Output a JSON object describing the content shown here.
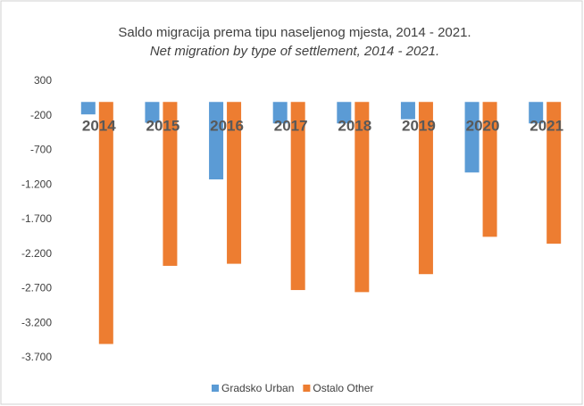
{
  "chart_data": {
    "type": "bar",
    "title": "Saldo migracija  prema tipu naseljenog mjesta, 2014 - 2021.",
    "subtitle": "Net migration by type of settlement, 2014 - 2021.",
    "categories": [
      "2014",
      "2015",
      "2016",
      "2017",
      "2018",
      "2019",
      "2020",
      "2021"
    ],
    "series": [
      {
        "name": "Gradsko Urban",
        "color": "#5b9bd5",
        "values": [
          -180,
          -300,
          -1120,
          -310,
          -310,
          -250,
          -1020,
          -310
        ]
      },
      {
        "name": "Ostalo Other",
        "color": "#ed7d31",
        "values": [
          -3500,
          -2370,
          -2340,
          -2720,
          -2750,
          -2490,
          -1950,
          -2050
        ]
      }
    ],
    "ylim": [
      300,
      -3700
    ],
    "yticks": [
      300,
      -200,
      -700,
      {
        "value": -1200,
        "label": "-1.200"
      },
      {
        "value": -1700,
        "label": "-1.700"
      },
      {
        "value": -2200,
        "label": "-2.200"
      },
      {
        "value": -2700,
        "label": "-2.700"
      },
      {
        "value": -3200,
        "label": "-3.200"
      },
      {
        "value": -3700,
        "label": "-3.700"
      }
    ],
    "grid": false,
    "legend": "bottom"
  }
}
